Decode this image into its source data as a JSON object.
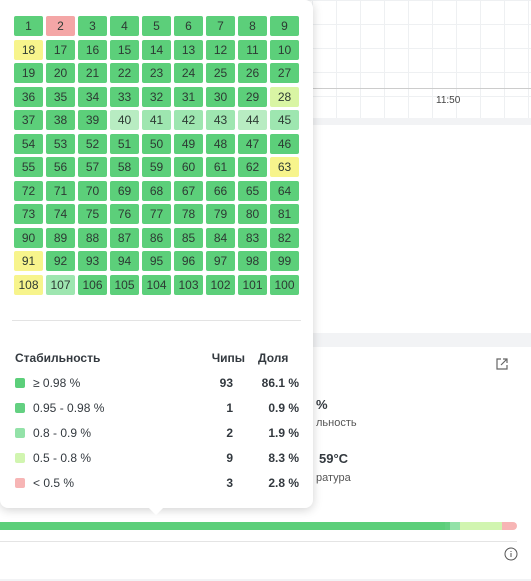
{
  "background": {
    "time_label": "11:50",
    "stat_fragment": "%",
    "stat_caption": "льность",
    "temp_value": "59°C",
    "temp_caption": "ратура"
  },
  "grid": {
    "palette": {
      "g": "#5ccf7a",
      "l": "#9ee6b0",
      "p": "#b8ecc2",
      "y": "#f7f48c",
      "m": "#d9f5a4",
      "r": "#f4a6a6"
    },
    "rows": [
      [
        {
          "n": "1",
          "c": "g"
        },
        {
          "n": "2",
          "c": "r"
        },
        {
          "n": "3",
          "c": "g"
        },
        {
          "n": "4",
          "c": "g"
        },
        {
          "n": "5",
          "c": "g"
        },
        {
          "n": "6",
          "c": "g"
        },
        {
          "n": "7",
          "c": "g"
        },
        {
          "n": "8",
          "c": "g"
        },
        {
          "n": "9",
          "c": "g"
        }
      ],
      [
        {
          "n": "18",
          "c": "y"
        },
        {
          "n": "17",
          "c": "g"
        },
        {
          "n": "16",
          "c": "g"
        },
        {
          "n": "15",
          "c": "g"
        },
        {
          "n": "14",
          "c": "g"
        },
        {
          "n": "13",
          "c": "g"
        },
        {
          "n": "12",
          "c": "g"
        },
        {
          "n": "11",
          "c": "g"
        },
        {
          "n": "10",
          "c": "g"
        }
      ],
      [
        {
          "n": "19",
          "c": "g"
        },
        {
          "n": "20",
          "c": "g"
        },
        {
          "n": "21",
          "c": "g"
        },
        {
          "n": "22",
          "c": "g"
        },
        {
          "n": "23",
          "c": "g"
        },
        {
          "n": "24",
          "c": "g"
        },
        {
          "n": "25",
          "c": "g"
        },
        {
          "n": "26",
          "c": "g"
        },
        {
          "n": "27",
          "c": "g"
        }
      ],
      [
        {
          "n": "36",
          "c": "g"
        },
        {
          "n": "35",
          "c": "g"
        },
        {
          "n": "34",
          "c": "g"
        },
        {
          "n": "33",
          "c": "g"
        },
        {
          "n": "32",
          "c": "g"
        },
        {
          "n": "31",
          "c": "g"
        },
        {
          "n": "30",
          "c": "g"
        },
        {
          "n": "29",
          "c": "g"
        },
        {
          "n": "28",
          "c": "m"
        }
      ],
      [
        {
          "n": "37",
          "c": "g"
        },
        {
          "n": "38",
          "c": "g"
        },
        {
          "n": "39",
          "c": "g"
        },
        {
          "n": "40",
          "c": "p"
        },
        {
          "n": "41",
          "c": "l"
        },
        {
          "n": "42",
          "c": "l"
        },
        {
          "n": "43",
          "c": "l"
        },
        {
          "n": "44",
          "c": "p"
        },
        {
          "n": "45",
          "c": "l"
        }
      ],
      [
        {
          "n": "54",
          "c": "g"
        },
        {
          "n": "53",
          "c": "g"
        },
        {
          "n": "52",
          "c": "g"
        },
        {
          "n": "51",
          "c": "g"
        },
        {
          "n": "50",
          "c": "g"
        },
        {
          "n": "49",
          "c": "g"
        },
        {
          "n": "48",
          "c": "g"
        },
        {
          "n": "47",
          "c": "g"
        },
        {
          "n": "46",
          "c": "g"
        }
      ],
      [
        {
          "n": "55",
          "c": "g"
        },
        {
          "n": "56",
          "c": "g"
        },
        {
          "n": "57",
          "c": "g"
        },
        {
          "n": "58",
          "c": "g"
        },
        {
          "n": "59",
          "c": "g"
        },
        {
          "n": "60",
          "c": "g"
        },
        {
          "n": "61",
          "c": "g"
        },
        {
          "n": "62",
          "c": "g"
        },
        {
          "n": "63",
          "c": "y"
        }
      ],
      [
        {
          "n": "72",
          "c": "g"
        },
        {
          "n": "71",
          "c": "g"
        },
        {
          "n": "70",
          "c": "g"
        },
        {
          "n": "69",
          "c": "g"
        },
        {
          "n": "68",
          "c": "g"
        },
        {
          "n": "67",
          "c": "g"
        },
        {
          "n": "66",
          "c": "g"
        },
        {
          "n": "65",
          "c": "g"
        },
        {
          "n": "64",
          "c": "g"
        }
      ],
      [
        {
          "n": "73",
          "c": "g"
        },
        {
          "n": "74",
          "c": "g"
        },
        {
          "n": "75",
          "c": "g"
        },
        {
          "n": "76",
          "c": "g"
        },
        {
          "n": "77",
          "c": "g"
        },
        {
          "n": "78",
          "c": "g"
        },
        {
          "n": "79",
          "c": "g"
        },
        {
          "n": "80",
          "c": "g"
        },
        {
          "n": "81",
          "c": "g"
        }
      ],
      [
        {
          "n": "90",
          "c": "g"
        },
        {
          "n": "89",
          "c": "g"
        },
        {
          "n": "88",
          "c": "g"
        },
        {
          "n": "87",
          "c": "g"
        },
        {
          "n": "86",
          "c": "g"
        },
        {
          "n": "85",
          "c": "g"
        },
        {
          "n": "84",
          "c": "g"
        },
        {
          "n": "83",
          "c": "g"
        },
        {
          "n": "82",
          "c": "g"
        }
      ],
      [
        {
          "n": "91",
          "c": "y"
        },
        {
          "n": "92",
          "c": "g"
        },
        {
          "n": "93",
          "c": "g"
        },
        {
          "n": "94",
          "c": "g"
        },
        {
          "n": "95",
          "c": "g"
        },
        {
          "n": "96",
          "c": "g"
        },
        {
          "n": "97",
          "c": "g"
        },
        {
          "n": "98",
          "c": "g"
        },
        {
          "n": "99",
          "c": "g"
        }
      ],
      [
        {
          "n": "108",
          "c": "y"
        },
        {
          "n": "107",
          "c": "l"
        },
        {
          "n": "106",
          "c": "g"
        },
        {
          "n": "105",
          "c": "g"
        },
        {
          "n": "104",
          "c": "g"
        },
        {
          "n": "103",
          "c": "g"
        },
        {
          "n": "102",
          "c": "g"
        },
        {
          "n": "101",
          "c": "g"
        },
        {
          "n": "100",
          "c": "g"
        }
      ]
    ]
  },
  "legend": {
    "headers": {
      "range": "Стабильность",
      "chips": "Чипы",
      "share": "Доля"
    },
    "rows": [
      {
        "range": "≥ 0.98 %",
        "chips": 93,
        "share": 86.1,
        "share_label": "86.1 %",
        "color": "#5ccf7a"
      },
      {
        "range": "0.95 - 0.98 %",
        "chips": 1,
        "share": 0.9,
        "share_label": "0.9 %",
        "color": "#63d081"
      },
      {
        "range": "0.8 - 0.9 %",
        "chips": 2,
        "share": 1.9,
        "share_label": "1.9 %",
        "color": "#93e2a8"
      },
      {
        "range": "0.5 - 0.8 %",
        "chips": 9,
        "share": 8.3,
        "share_label": "8.3 %",
        "color": "#d1f5b0"
      },
      {
        "range": "< 0.5 %",
        "chips": 3,
        "share": 2.8,
        "share_label": "2.8 %",
        "color": "#f7b5b5"
      }
    ]
  }
}
